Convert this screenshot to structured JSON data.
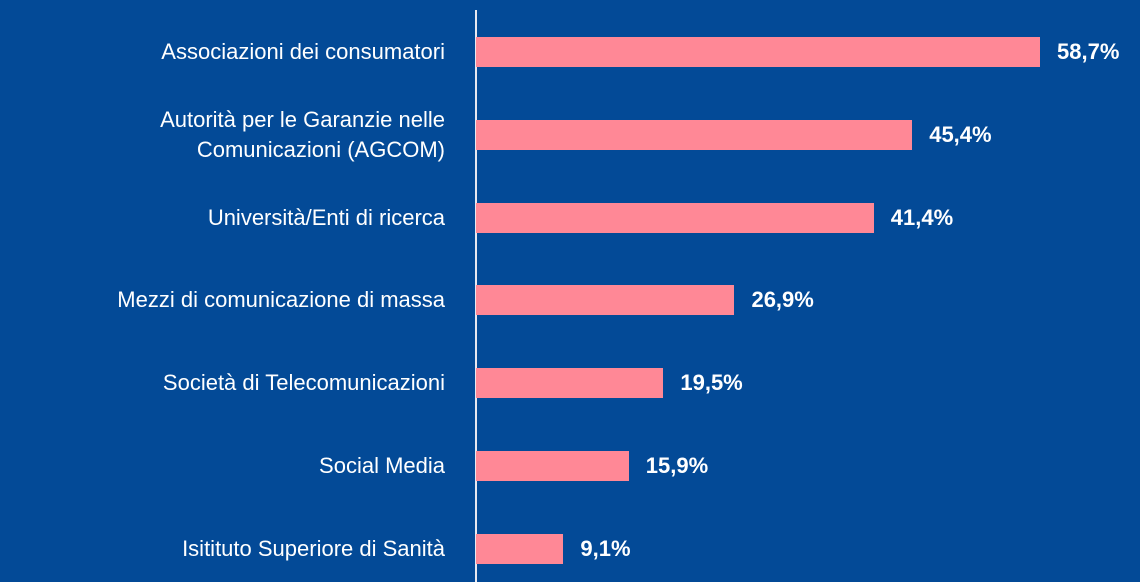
{
  "chart_data": {
    "type": "bar",
    "orientation": "horizontal",
    "categories": [
      "Associazioni dei consumatori",
      "Autorità per le Garanzie nelle\nComunicazioni (AGCOM)",
      "Università/Enti di ricerca",
      "Mezzi di comunicazione di massa",
      "Società di Telecomunicazioni",
      "Social Media",
      "Isitituto Superiore di Sanità"
    ],
    "values": [
      58.7,
      45.4,
      41.4,
      26.9,
      19.5,
      15.9,
      9.1
    ],
    "value_labels": [
      "58,7%",
      "45,4%",
      "41,4%",
      "26,9%",
      "19,5%",
      "15,9%",
      "9,1%"
    ],
    "color": "#ff8896",
    "background": "#034a97"
  }
}
